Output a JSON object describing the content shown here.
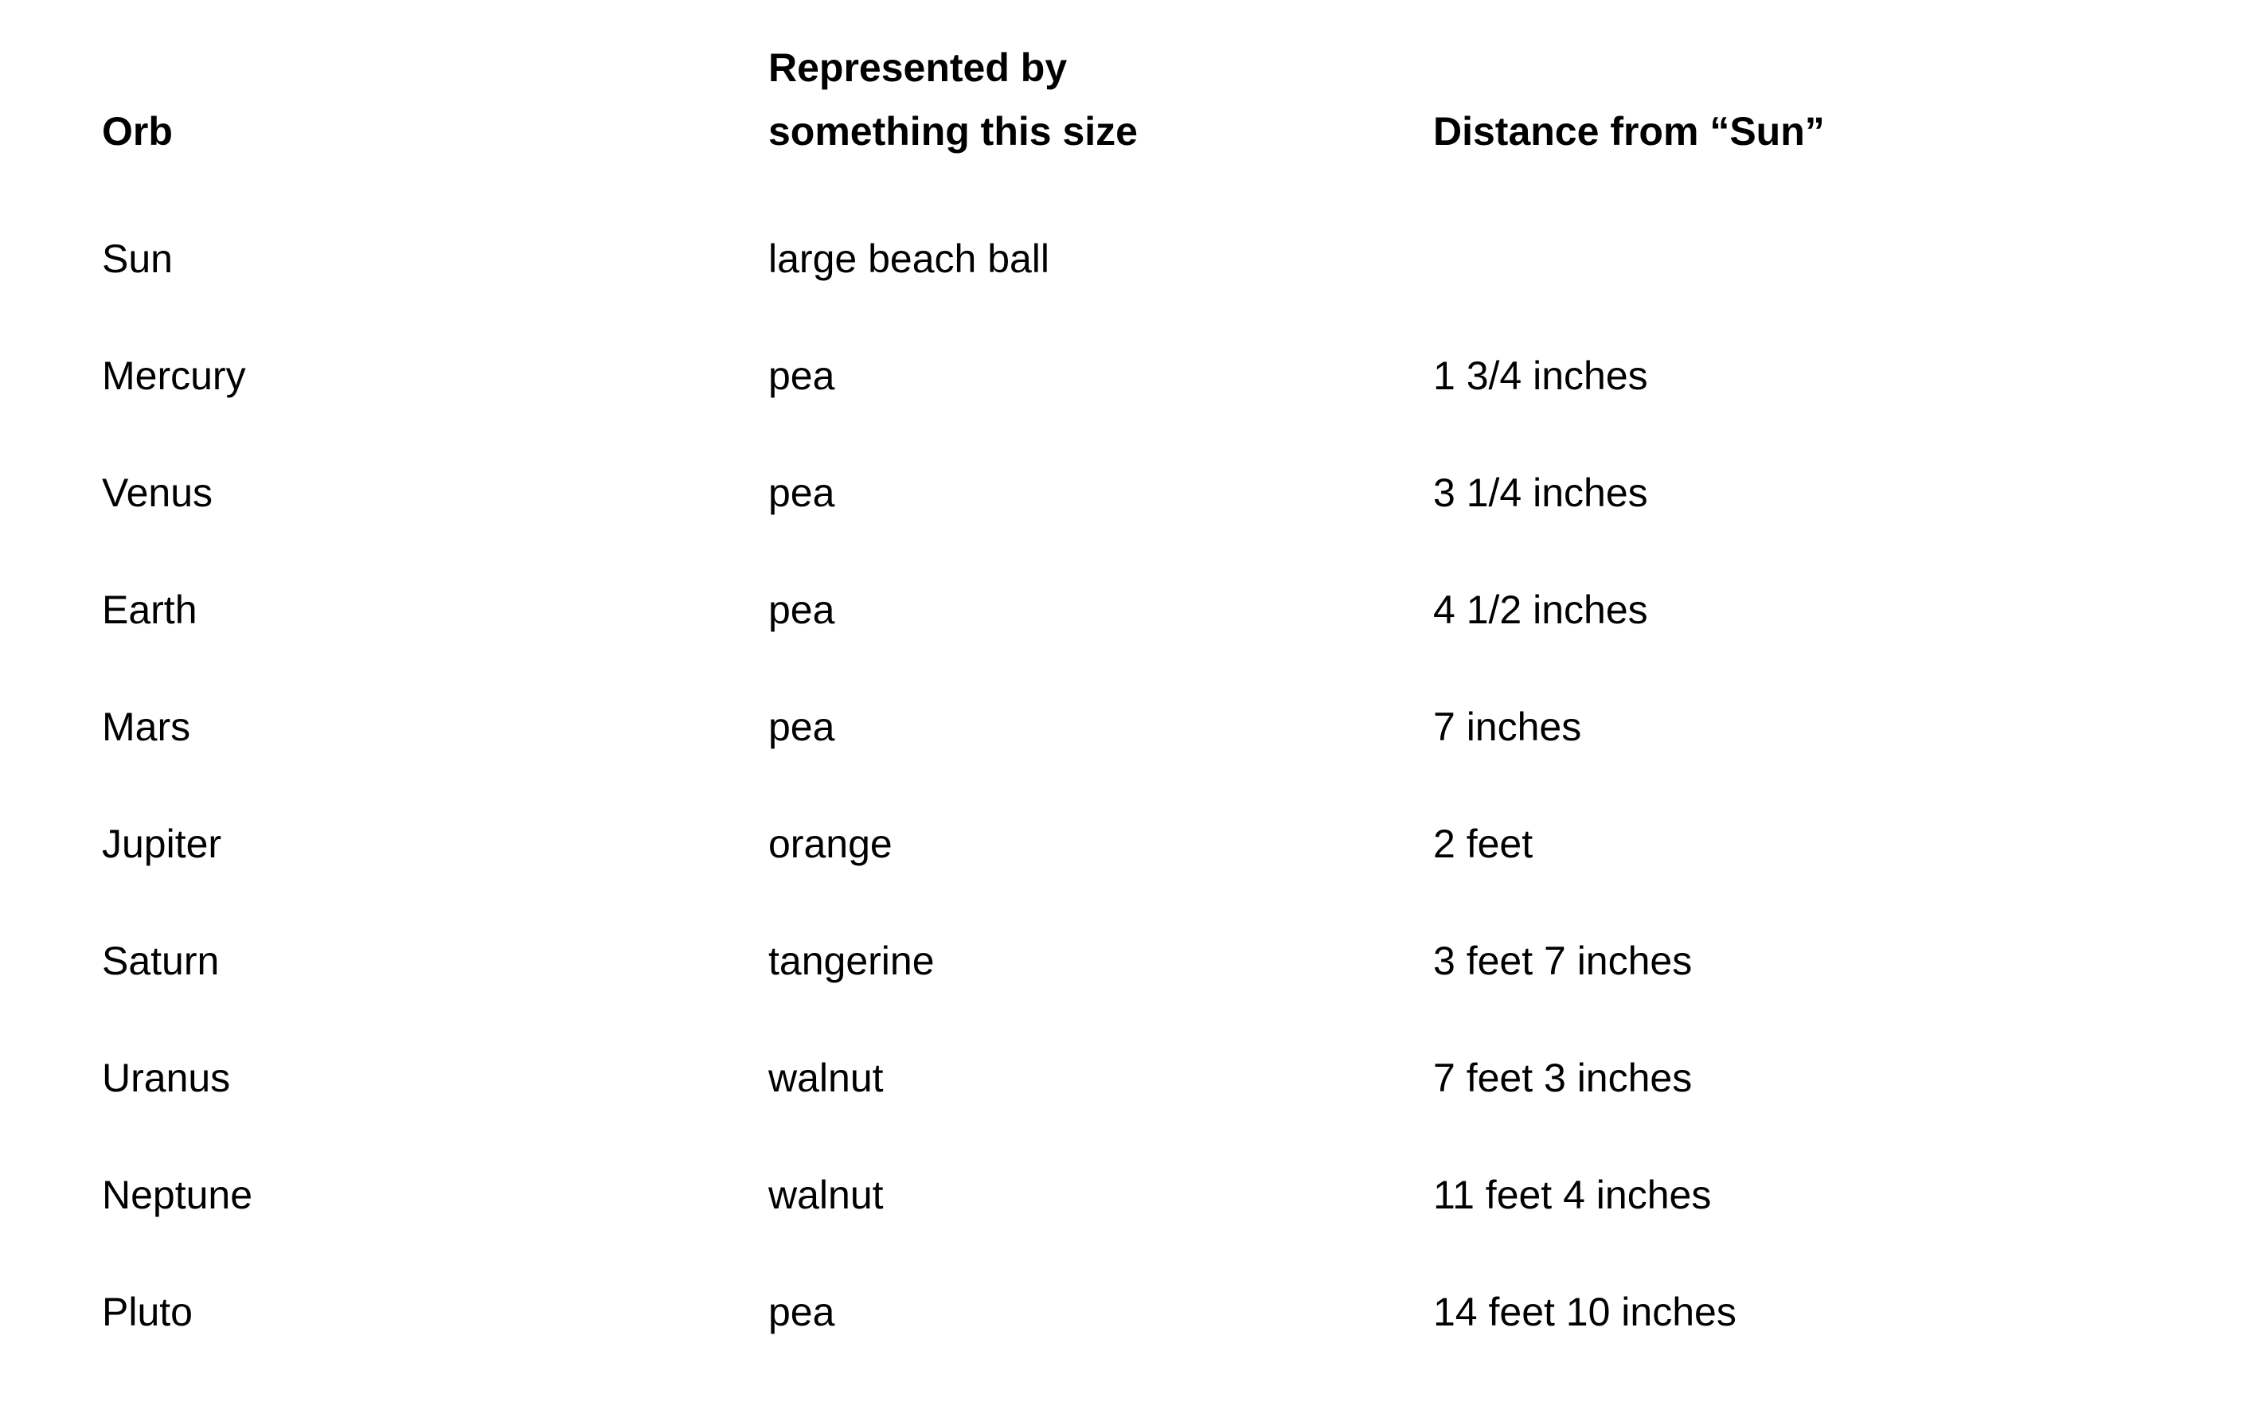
{
  "document": {
    "background_color": "#ffffff",
    "text_color": "#000000",
    "table": {
      "headers": {
        "orb": "Orb",
        "size_line1": "Represented by",
        "size_line2": "something this size",
        "size_full": "Represented by something this size",
        "distance": "Distance from “Sun”"
      },
      "rows": [
        {
          "orb": "Sun",
          "size": "large beach ball",
          "distance": ""
        },
        {
          "orb": "Mercury",
          "size": "pea",
          "distance": "1 3/4 inches"
        },
        {
          "orb": "Venus",
          "size": "pea",
          "distance": "3 1/4 inches"
        },
        {
          "orb": "Earth",
          "size": "pea",
          "distance": "4 1/2 inches"
        },
        {
          "orb": "Mars",
          "size": "pea",
          "distance": "7 inches"
        },
        {
          "orb": "Jupiter",
          "size": "orange",
          "distance": "2 feet"
        },
        {
          "orb": "Saturn",
          "size": "tangerine",
          "distance": "3 feet 7 inches"
        },
        {
          "orb": "Uranus",
          "size": "walnut",
          "distance": "7 feet 3 inches"
        },
        {
          "orb": "Neptune",
          "size": "walnut",
          "distance": "11 feet 4 inches"
        },
        {
          "orb": "Pluto",
          "size": "pea",
          "distance": "14 feet 10 inches"
        }
      ]
    }
  }
}
